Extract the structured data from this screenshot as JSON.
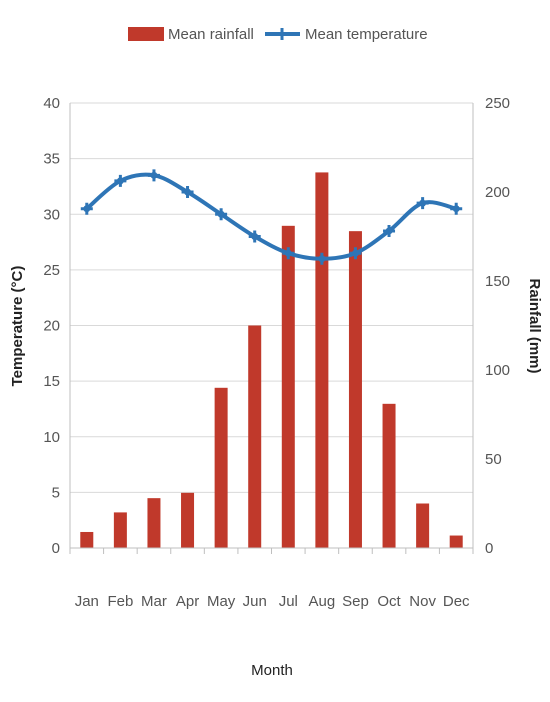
{
  "chart_data": {
    "type": "bar",
    "categories": [
      "Jan",
      "Feb",
      "Mar",
      "Apr",
      "May",
      "Jun",
      "Jul",
      "Aug",
      "Sep",
      "Oct",
      "Nov",
      "Dec"
    ],
    "series": [
      {
        "name": "Mean rainfall",
        "type": "bar",
        "axis": "right",
        "color": "#c0392b",
        "values": [
          9,
          20,
          28,
          31,
          90,
          125,
          181,
          211,
          178,
          81,
          25,
          7
        ]
      },
      {
        "name": "Mean temperature",
        "type": "line",
        "axis": "left",
        "color": "#2e75b6",
        "values": [
          30.5,
          33,
          33.5,
          32,
          30,
          28,
          26.5,
          26,
          26.5,
          28.5,
          31,
          30.5
        ]
      }
    ],
    "xlabel": "Month",
    "ylabel_left": "Temperature (°C)",
    "ylabel_right": "Rainfall (mm)",
    "ylim_left": [
      0,
      40
    ],
    "ylim_right": [
      0,
      250
    ],
    "yticks_left": [
      "0",
      "5",
      "10",
      "15",
      "20",
      "25",
      "30",
      "35",
      "40"
    ],
    "yticks_right": [
      "0",
      "50",
      "100",
      "150",
      "200",
      "250"
    ],
    "grid": true,
    "legend_position": "top"
  }
}
